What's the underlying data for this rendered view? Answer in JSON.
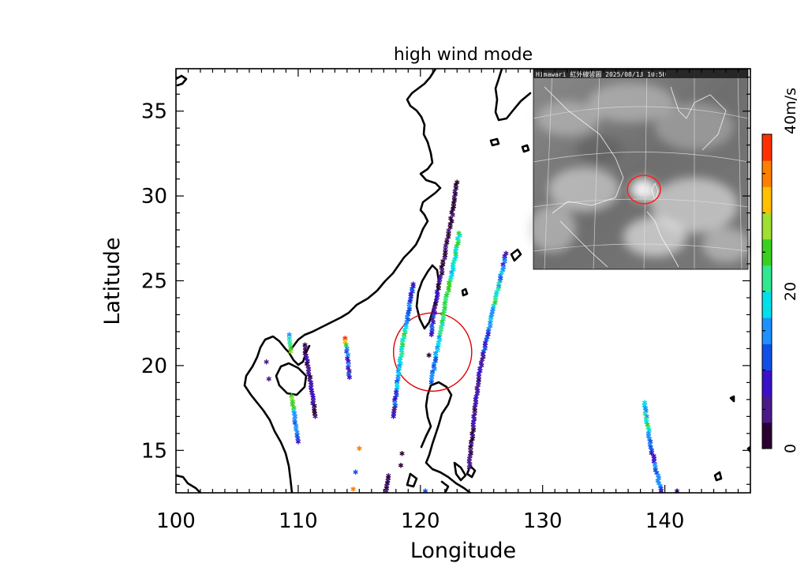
{
  "chart_data": {
    "type": "scatter",
    "title": "high wind mode",
    "xlabel": "Longitude",
    "ylabel": "Latitude",
    "xlim": [
      100,
      147
    ],
    "ylim": [
      12.5,
      37.5
    ],
    "x_ticks": [
      100,
      110,
      120,
      130,
      140
    ],
    "y_ticks": [
      15,
      20,
      25,
      30,
      35
    ],
    "x_tick_labels": [
      "100",
      "110",
      "120",
      "130",
      "140"
    ],
    "y_tick_labels": [
      "15",
      "20",
      "25",
      "30",
      "35"
    ],
    "grid": false,
    "marker": "asterisk",
    "colorbar": {
      "min": 0,
      "max": 40,
      "labels": [
        {
          "value": 0,
          "text": "0"
        },
        {
          "value": 20,
          "text": "20"
        },
        {
          "value": 40,
          "text": "40m/s"
        }
      ],
      "colors": [
        "#2a0030",
        "#4b1a8a",
        "#3a10c8",
        "#1050e8",
        "#1e90ff",
        "#00e0e8",
        "#30e890",
        "#3ad020",
        "#a0e030",
        "#ffc000",
        "#ff8000",
        "#ff3000"
      ],
      "placement": "right"
    },
    "highlight_circle": {
      "center": [
        121.0,
        20.8
      ],
      "radius_deg": 3.2,
      "color": "#e00000"
    },
    "swaths": [
      {
        "name": "",
        "points": [
          [
            123.0,
            30.8,
            1
          ],
          [
            122.5,
            28.5,
            2
          ],
          [
            122.0,
            26.5,
            3
          ],
          [
            121.3,
            24.0,
            6
          ],
          [
            120.9,
            21.8,
            8
          ]
        ],
        "step": 0.18,
        "jitter": 0.15
      },
      {
        "name": "",
        "points": [
          [
            123.2,
            27.8,
            22
          ],
          [
            122.7,
            25.8,
            20
          ],
          [
            122.1,
            23.8,
            24
          ],
          [
            121.5,
            21.5,
            18
          ],
          [
            120.9,
            19.0,
            12
          ]
        ],
        "step": 0.16,
        "jitter": 0.15
      },
      {
        "name": "",
        "points": [
          [
            119.4,
            24.8,
            10
          ],
          [
            119.0,
            23.0,
            14
          ],
          [
            118.6,
            21.5,
            22
          ],
          [
            118.2,
            19.5,
            16
          ],
          [
            117.8,
            17.0,
            8
          ]
        ],
        "step": 0.16,
        "jitter": 0.12
      },
      {
        "name": "",
        "points": [
          [
            117.4,
            13.5,
            5
          ],
          [
            117.2,
            12.6,
            5
          ]
        ],
        "step": 0.15,
        "jitter": 0.05
      },
      {
        "name": "",
        "points": [
          [
            127.0,
            26.6,
            8
          ],
          [
            126.2,
            24.0,
            22
          ],
          [
            125.4,
            21.5,
            10
          ],
          [
            124.7,
            19.0,
            6
          ],
          [
            124.0,
            14.0,
            5
          ]
        ],
        "step": 0.17,
        "jitter": 0.12
      },
      {
        "name": "",
        "points": [
          [
            110.5,
            21.2,
            4
          ],
          [
            111.0,
            19.0,
            6
          ],
          [
            111.4,
            17.0,
            5
          ]
        ],
        "step": 0.16,
        "jitter": 0.12
      },
      {
        "name": "",
        "points": [
          [
            109.3,
            21.8,
            18
          ],
          [
            109.4,
            20.8,
            28
          ]
        ],
        "step": 0.2,
        "jitter": 0.1
      },
      {
        "name": "",
        "points": [
          [
            109.5,
            18.2,
            28
          ],
          [
            109.7,
            17.0,
            16
          ],
          [
            110.0,
            15.5,
            8
          ]
        ],
        "step": 0.18,
        "jitter": 0.1
      },
      {
        "name": "",
        "points": [
          [
            113.8,
            21.6,
            36
          ],
          [
            114.0,
            20.8,
            12
          ],
          [
            114.2,
            19.3,
            8
          ]
        ],
        "step": 0.2,
        "jitter": 0.1
      },
      {
        "name": "",
        "points": [
          [
            138.3,
            17.8,
            16
          ],
          [
            138.6,
            16.5,
            22
          ],
          [
            138.9,
            15.0,
            10
          ],
          [
            139.4,
            13.5,
            14
          ],
          [
            139.7,
            12.6,
            8
          ]
        ],
        "step": 0.17,
        "jitter": 0.18
      }
    ],
    "single_points": [
      [
        107.4,
        20.2,
        4
      ],
      [
        107.6,
        19.2,
        4
      ],
      [
        115.0,
        15.1,
        36
      ],
      [
        114.7,
        13.7,
        12
      ],
      [
        114.5,
        12.7,
        34
      ],
      [
        120.4,
        12.6,
        10
      ],
      [
        120.7,
        20.6,
        2
      ],
      [
        118.5,
        14.8,
        1
      ],
      [
        118.4,
        14.1,
        1
      ],
      [
        141.0,
        12.6,
        4
      ]
    ]
  },
  "inset": {
    "caption": "Himawari 紅外線雲圖 2025/08/13 10:50",
    "circle_color": "#ff2020"
  }
}
